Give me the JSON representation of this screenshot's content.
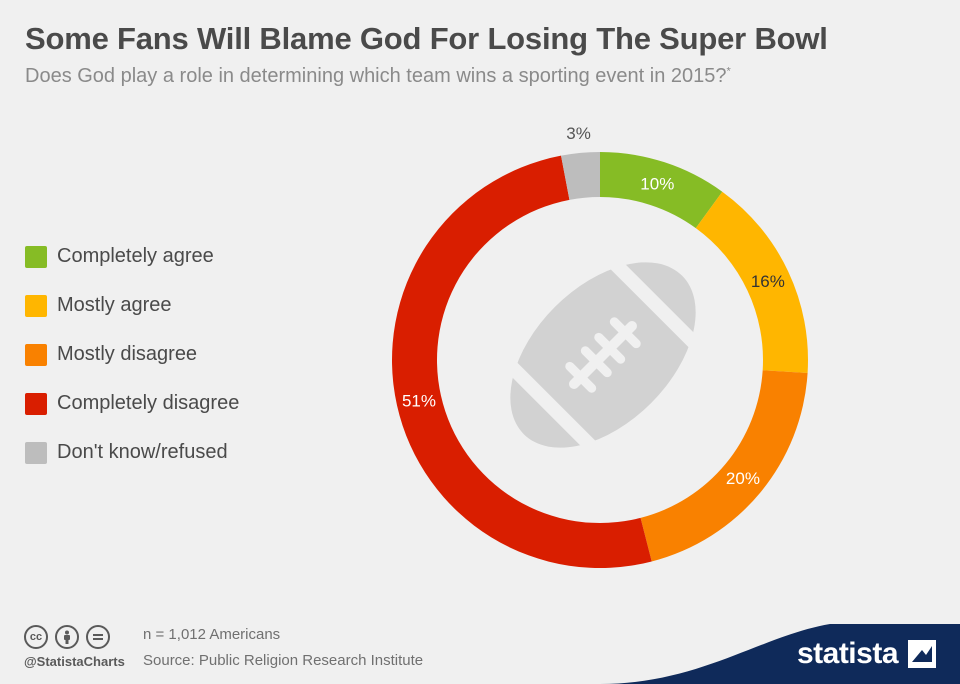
{
  "header": {
    "title": "Some Fans Will Blame God For Losing The Super Bowl",
    "subtitle": "Does God play a role in determining which team wins a sporting event in 2015?",
    "subtitle_mark": "*"
  },
  "chart_data": {
    "type": "pie",
    "variant": "donut",
    "title": "Some Fans Will Blame God For Losing The Super Bowl",
    "subtitle": "Does God play a role in determining which team wins a sporting event in 2015?*",
    "legend_position": "left",
    "categories": [
      "Completely agree",
      "Mostly agree",
      "Mostly disagree",
      "Completely disagree",
      "Don't know/refused"
    ],
    "values": [
      10,
      16,
      20,
      51,
      3
    ],
    "labels": [
      "10%",
      "16%",
      "20%",
      "51%",
      "3%"
    ],
    "colors": [
      "#86bc25",
      "#ffb600",
      "#f98100",
      "#d91e00",
      "#bdbdbd"
    ],
    "label_colors": [
      "#ffffff",
      "#333333",
      "#ffffff",
      "#ffffff",
      "#555555"
    ],
    "label_outside": [
      false,
      false,
      false,
      false,
      true
    ]
  },
  "legend": {
    "items": [
      {
        "label": "Completely agree",
        "color": "#86bc25"
      },
      {
        "label": "Mostly agree",
        "color": "#ffb600"
      },
      {
        "label": "Mostly disagree",
        "color": "#f98100"
      },
      {
        "label": "Completely disagree",
        "color": "#d91e00"
      },
      {
        "label": "Don't know/refused",
        "color": "#bdbdbd"
      }
    ]
  },
  "center_icon": "football-icon",
  "footer": {
    "license_icons": [
      "cc-icon",
      "attribution-icon",
      "no-derivatives-icon"
    ],
    "cc_text": "cc",
    "handle": "@StatistaCharts",
    "note": "n = 1,012 Americans",
    "source": "Source: Public Religion Research Institute",
    "brand": "statista"
  },
  "colors": {
    "background": "#f0f0f0",
    "brand_band": "#0f2a5a"
  }
}
